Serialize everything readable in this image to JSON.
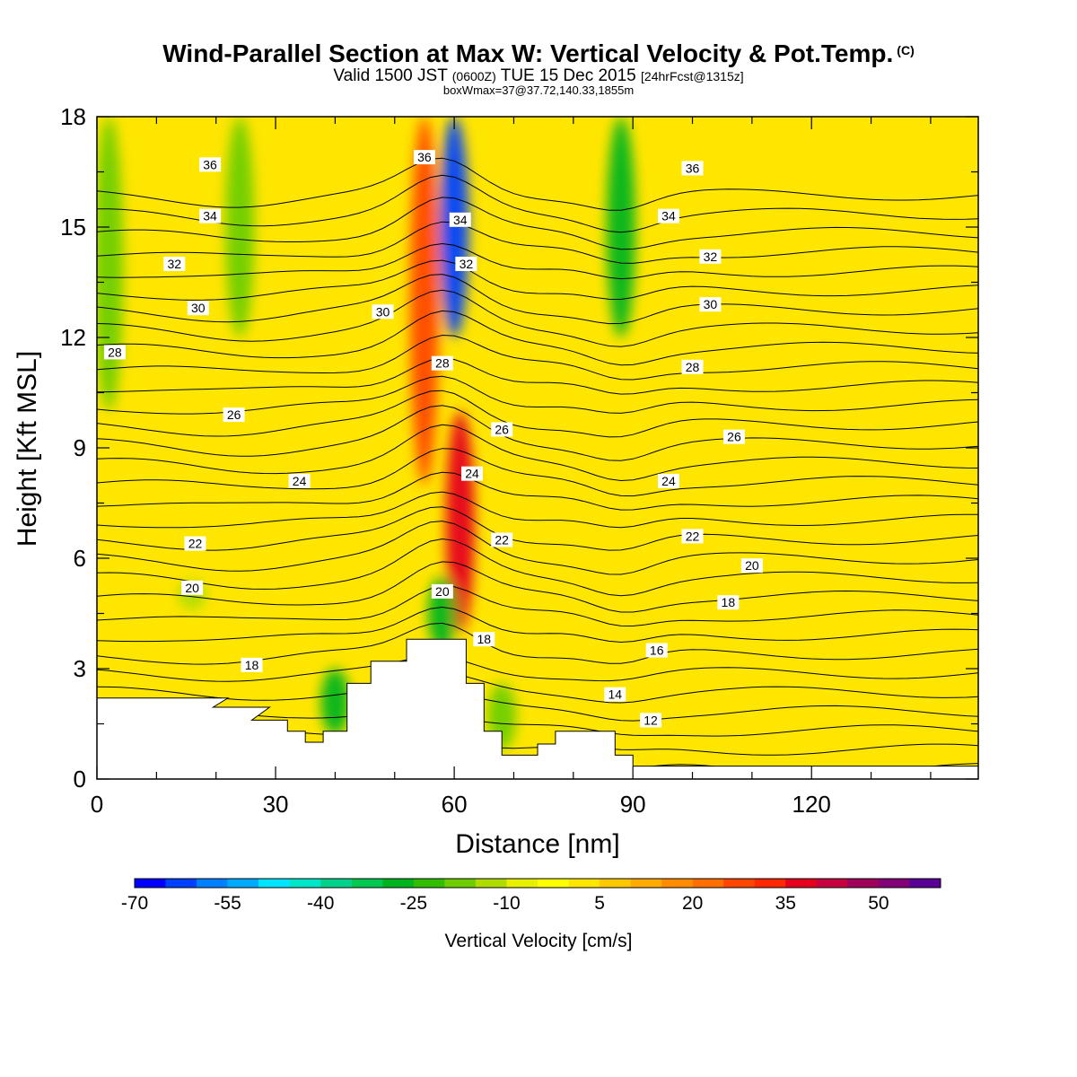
{
  "title": "Wind-Parallel Section at Max W: Vertical Velocity & Pot.Temp.",
  "copyright_mark": "(C)",
  "subtitle": {
    "valid_prefix": "Valid 1500 JST",
    "zulu": "(0600Z)",
    "date": "TUE 15 Dec 2015",
    "forecast": "[24hrFcst@1315z]"
  },
  "box_wmax": "boxWmax=37@37.72,140.33,1855m",
  "colors": {
    "background_field": "#ffe600",
    "terrain": "#ffffff",
    "contour": "#000000"
  },
  "chart_data": {
    "type": "heatmap",
    "xlabel": "Distance [nm]",
    "ylabel": "Height [Kft MSL]",
    "xlim": [
      0,
      148
    ],
    "ylim": [
      0,
      18
    ],
    "x_ticks": [
      "0",
      "30",
      "60",
      "90",
      "120"
    ],
    "y_ticks": [
      "0",
      "3",
      "6",
      "9",
      "12",
      "15",
      "18"
    ],
    "colorbar": {
      "label": "Vertical Velocity [cm/s]",
      "tick_labels": [
        "-70",
        "-55",
        "-40",
        "-25",
        "-10",
        "5",
        "20",
        "35",
        "50"
      ],
      "levels": [
        -70,
        -65,
        -60,
        -55,
        -50,
        -45,
        -40,
        -35,
        -30,
        -25,
        -20,
        -15,
        -10,
        -5,
        0,
        5,
        10,
        15,
        20,
        25,
        30,
        35,
        40,
        45,
        50,
        55
      ],
      "colors": [
        "#0000ff",
        "#0040ff",
        "#0080ff",
        "#00aaff",
        "#00e5ff",
        "#00e6c8",
        "#00d28c",
        "#00c850",
        "#00b41e",
        "#32be00",
        "#6ecd00",
        "#afdc00",
        "#e6f000",
        "#ffff00",
        "#ffe600",
        "#ffc800",
        "#ffaa00",
        "#ff8c00",
        "#ff6e00",
        "#ff4600",
        "#ff2800",
        "#e6001e",
        "#c80041",
        "#a0005a",
        "#820078",
        "#5a0096"
      ]
    },
    "w_field": {
      "background": 0,
      "features": [
        {
          "x": 2,
          "z_range": [
            10,
            18
          ],
          "w": -18
        },
        {
          "x": 24,
          "z_range": [
            12,
            18
          ],
          "w": -20
        },
        {
          "x": 16,
          "z_range": [
            4.6,
            5.4
          ],
          "w": -15
        },
        {
          "x": 55,
          "z_range": [
            8,
            18
          ],
          "w": 28
        },
        {
          "x": 60,
          "z_range": [
            12,
            18
          ],
          "w": -62
        },
        {
          "x": 61,
          "z_range": [
            4,
            10
          ],
          "w": 36
        },
        {
          "x": 58,
          "z_range": [
            3.5,
            5.5
          ],
          "w": -28
        },
        {
          "x": 88,
          "z_range": [
            12,
            18
          ],
          "w": -28
        },
        {
          "x": 40,
          "z_range": [
            1.2,
            3
          ],
          "w": -28
        },
        {
          "x": 68,
          "z_range": [
            0.8,
            2.6
          ],
          "w": -20
        }
      ]
    },
    "theta_contour_labels": [
      {
        "value": "36",
        "x": 19,
        "z": 16.7
      },
      {
        "value": "34",
        "x": 19,
        "z": 15.3
      },
      {
        "value": "32",
        "x": 13,
        "z": 14.0
      },
      {
        "value": "30",
        "x": 17,
        "z": 12.8
      },
      {
        "value": "28",
        "x": 3,
        "z": 11.6
      },
      {
        "value": "26",
        "x": 23,
        "z": 9.9
      },
      {
        "value": "24",
        "x": 34,
        "z": 8.1
      },
      {
        "value": "22",
        "x": 16.5,
        "z": 6.4
      },
      {
        "value": "20",
        "x": 16,
        "z": 5.2
      },
      {
        "value": "18",
        "x": 26,
        "z": 3.1
      },
      {
        "value": "30",
        "x": 48,
        "z": 12.7
      },
      {
        "value": "36",
        "x": 55,
        "z": 16.9
      },
      {
        "value": "34",
        "x": 61,
        "z": 15.2
      },
      {
        "value": "32",
        "x": 62,
        "z": 14.0
      },
      {
        "value": "28",
        "x": 58,
        "z": 11.3
      },
      {
        "value": "26",
        "x": 68,
        "z": 9.5
      },
      {
        "value": "24",
        "x": 63,
        "z": 8.3
      },
      {
        "value": "22",
        "x": 68,
        "z": 6.5
      },
      {
        "value": "20",
        "x": 58,
        "z": 5.1
      },
      {
        "value": "18",
        "x": 65,
        "z": 3.8
      },
      {
        "value": "14",
        "x": 87,
        "z": 2.3
      },
      {
        "value": "12",
        "x": 93,
        "z": 1.6
      },
      {
        "value": "16",
        "x": 94,
        "z": 3.5
      },
      {
        "value": "36",
        "x": 100,
        "z": 16.6
      },
      {
        "value": "34",
        "x": 96,
        "z": 15.3
      },
      {
        "value": "32",
        "x": 103,
        "z": 14.2
      },
      {
        "value": "30",
        "x": 103,
        "z": 12.9
      },
      {
        "value": "28",
        "x": 100,
        "z": 11.2
      },
      {
        "value": "26",
        "x": 107,
        "z": 9.3
      },
      {
        "value": "24",
        "x": 96,
        "z": 8.1
      },
      {
        "value": "22",
        "x": 100,
        "z": 6.6
      },
      {
        "value": "20",
        "x": 110,
        "z": 5.8
      },
      {
        "value": "18",
        "x": 106,
        "z": 4.8
      }
    ],
    "theta_levels": [
      4,
      5,
      6,
      7,
      8,
      9,
      10,
      11,
      12,
      13,
      14,
      15,
      16,
      17,
      18,
      19,
      20,
      21,
      22,
      23,
      24,
      25,
      26,
      27,
      28,
      29,
      30,
      31,
      32,
      33,
      34,
      35,
      36,
      37,
      38,
      39,
      40
    ],
    "terrain": [
      [
        0,
        2.2
      ],
      [
        20,
        2.2
      ],
      [
        22,
        2.2
      ],
      [
        19.5,
        1.95
      ],
      [
        29,
        1.95
      ],
      [
        26,
        1.6
      ],
      [
        32,
        1.6
      ],
      [
        32,
        1.3
      ],
      [
        35,
        1.3
      ],
      [
        35,
        1.0
      ],
      [
        38,
        1.0
      ],
      [
        38,
        1.3
      ],
      [
        42,
        1.3
      ],
      [
        42,
        2.6
      ],
      [
        46,
        2.6
      ],
      [
        46,
        3.2
      ],
      [
        52,
        3.2
      ],
      [
        52,
        3.8
      ],
      [
        62,
        3.8
      ],
      [
        62,
        2.6
      ],
      [
        65,
        2.6
      ],
      [
        65,
        1.3
      ],
      [
        68,
        1.3
      ],
      [
        68,
        0.65
      ],
      [
        74,
        0.65
      ],
      [
        74,
        0.95
      ],
      [
        77,
        0.95
      ],
      [
        77,
        1.3
      ],
      [
        87,
        1.3
      ],
      [
        87,
        0.65
      ],
      [
        90,
        0.65
      ],
      [
        90,
        0.35
      ],
      [
        148,
        0.35
      ]
    ]
  }
}
